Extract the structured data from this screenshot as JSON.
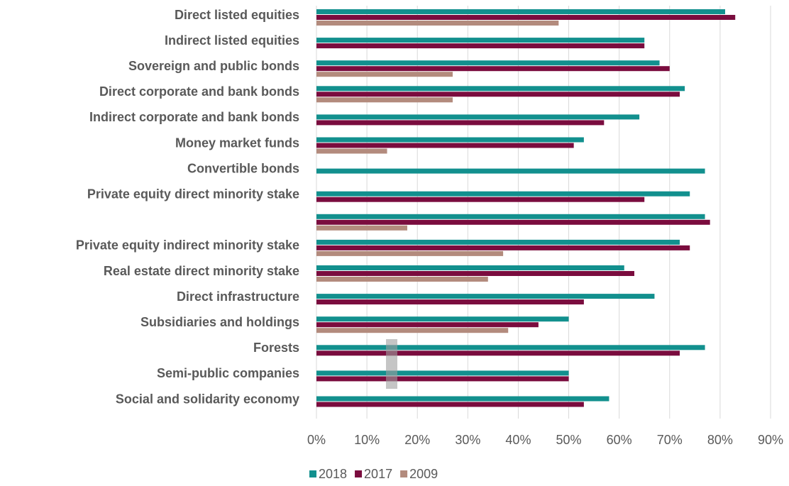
{
  "chart_data": {
    "type": "hbar",
    "categories": [
      "Direct listed equities",
      "Indirect listed equities",
      "Sovereign and public bonds",
      "Direct corporate and bank bonds",
      "Indirect corporate and bank bonds",
      "Money market funds",
      "Convertible bonds",
      "Private equity direct minority stake",
      null,
      "Private equity indirect minority stake",
      "Real estate direct minority stake",
      "Direct infrastructure",
      "Subsidiaries and holdings",
      "Forests",
      "Semi-public companies",
      "Social and solidarity economy"
    ],
    "series": [
      {
        "name": "2018",
        "color": "#12908e",
        "values": [
          81,
          65,
          68,
          73,
          64,
          53,
          77,
          74,
          77,
          72,
          61,
          67,
          50,
          77,
          50,
          58
        ]
      },
      {
        "name": "2017",
        "color": "#7a0c3e",
        "values": [
          83,
          65,
          70,
          72,
          57,
          51,
          null,
          65,
          78,
          74,
          63,
          53,
          44,
          72,
          50,
          53
        ]
      },
      {
        "name": "2009",
        "color": "#b38b7d",
        "values": [
          48,
          null,
          27,
          27,
          null,
          14,
          null,
          null,
          18,
          37,
          34,
          null,
          38,
          null,
          null,
          null
        ]
      }
    ],
    "xlim": [
      0,
      90
    ],
    "xticks": [
      {
        "value": 0,
        "label": "0%"
      },
      {
        "value": 10,
        "label": "10%"
      },
      {
        "value": 20,
        "label": "20%"
      },
      {
        "value": 30,
        "label": "30%"
      },
      {
        "value": 40,
        "label": "40%"
      },
      {
        "value": 50,
        "label": "50%"
      },
      {
        "value": 60,
        "label": "60%"
      },
      {
        "value": 70,
        "label": "70%"
      },
      {
        "value": 80,
        "label": "80%"
      },
      {
        "value": 90,
        "label": "90%"
      }
    ],
    "grid": true,
    "legend": "bottom"
  }
}
